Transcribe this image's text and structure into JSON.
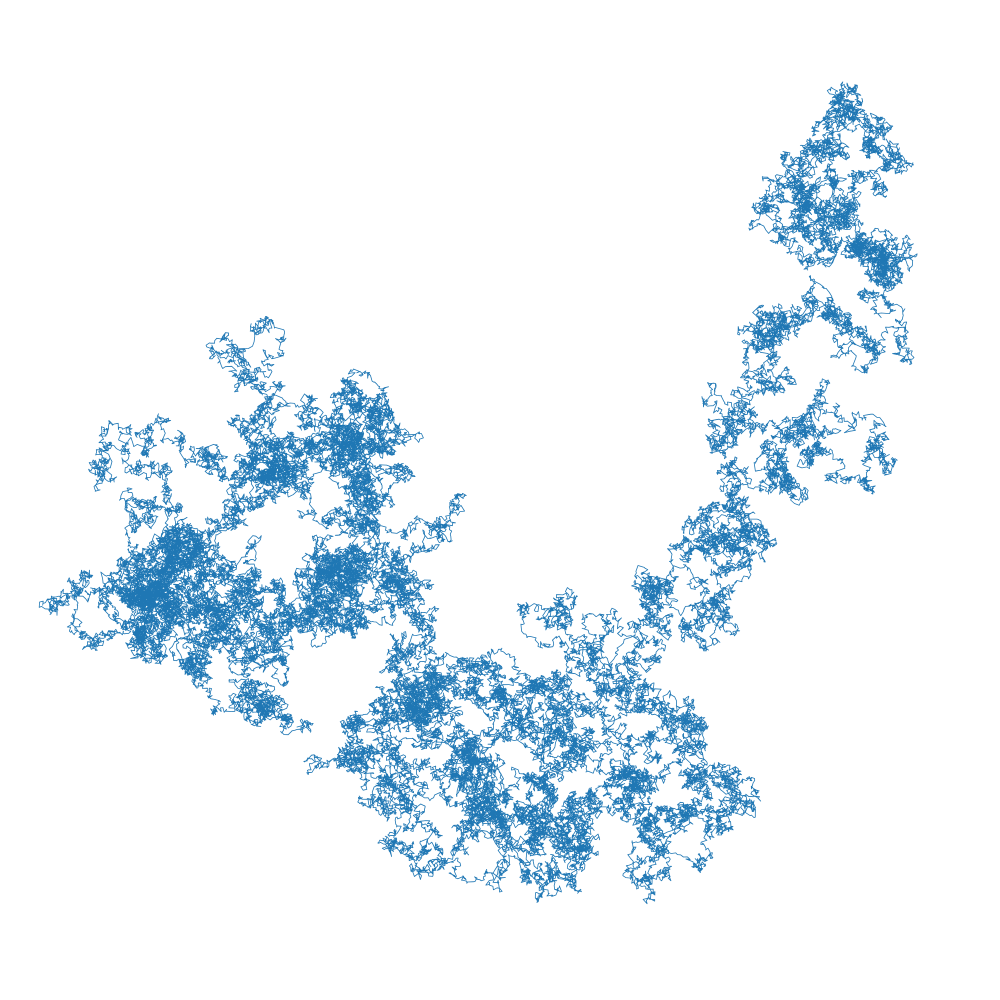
{
  "chart_data": {
    "type": "line",
    "title": "",
    "xlabel": "",
    "ylabel": "",
    "axes_visible": false,
    "grid": false,
    "legend": "none",
    "series": [
      {
        "color": "#1f77b4",
        "x": [
          0.23,
          0.2,
          0.12,
          0.05,
          0.04,
          0.07,
          0.15,
          0.18,
          0.11,
          0.04,
          0.03,
          0.08,
          0.14,
          0.12,
          0.06,
          0.01,
          0.04,
          0.11,
          0.17,
          0.14,
          0.24,
          0.3,
          0.32,
          0.31,
          0.3,
          0.23,
          0.2,
          0.18,
          0.3,
          0.36,
          0.29,
          0.22,
          0.28,
          0.41,
          0.35,
          0.26,
          0.3,
          0.35,
          0.42,
          0.4,
          0.32,
          0.37,
          0.47,
          0.55,
          0.54,
          0.49,
          0.44,
          0.5,
          0.57,
          0.52,
          0.46,
          0.43,
          0.4,
          0.48,
          0.53,
          0.58,
          0.65,
          0.71,
          0.76,
          0.69,
          0.61,
          0.63,
          0.68,
          0.62,
          0.59,
          0.66,
          0.74,
          0.78,
          0.75,
          0.8,
          0.85,
          0.9,
          0.86,
          0.81,
          0.84,
          0.91,
          0.97,
          0.99,
          0.95,
          0.88,
          0.83,
          0.86,
          0.92,
          0.96,
          0.98
        ],
        "y": [
          -0.18,
          -0.1,
          -0.02,
          0.05,
          0.14,
          0.2,
          0.24,
          0.31,
          0.37,
          0.33,
          0.26,
          0.18,
          0.12,
          0.05,
          0.01,
          0.03,
          0.08,
          0.12,
          0.07,
          -0.01,
          0.02,
          0.07,
          0.13,
          0.2,
          0.28,
          0.33,
          0.36,
          0.43,
          0.46,
          0.41,
          0.37,
          0.31,
          0.25,
          0.2,
          0.14,
          0.08,
          0.01,
          -0.05,
          -0.1,
          -0.17,
          -0.23,
          -0.28,
          -0.25,
          -0.2,
          -0.28,
          -0.35,
          -0.4,
          -0.46,
          -0.42,
          -0.36,
          -0.3,
          -0.22,
          -0.15,
          -0.1,
          -0.16,
          -0.24,
          -0.3,
          -0.36,
          -0.4,
          -0.43,
          -0.35,
          -0.27,
          -0.2,
          -0.13,
          -0.05,
          0.02,
          0.06,
          0.12,
          0.17,
          0.24,
          0.3,
          0.36,
          0.42,
          0.48,
          0.55,
          0.62,
          0.67,
          0.71,
          0.76,
          0.8,
          0.86,
          0.92,
          0.96,
          0.99,
          1.0
        ]
      }
    ]
  }
}
